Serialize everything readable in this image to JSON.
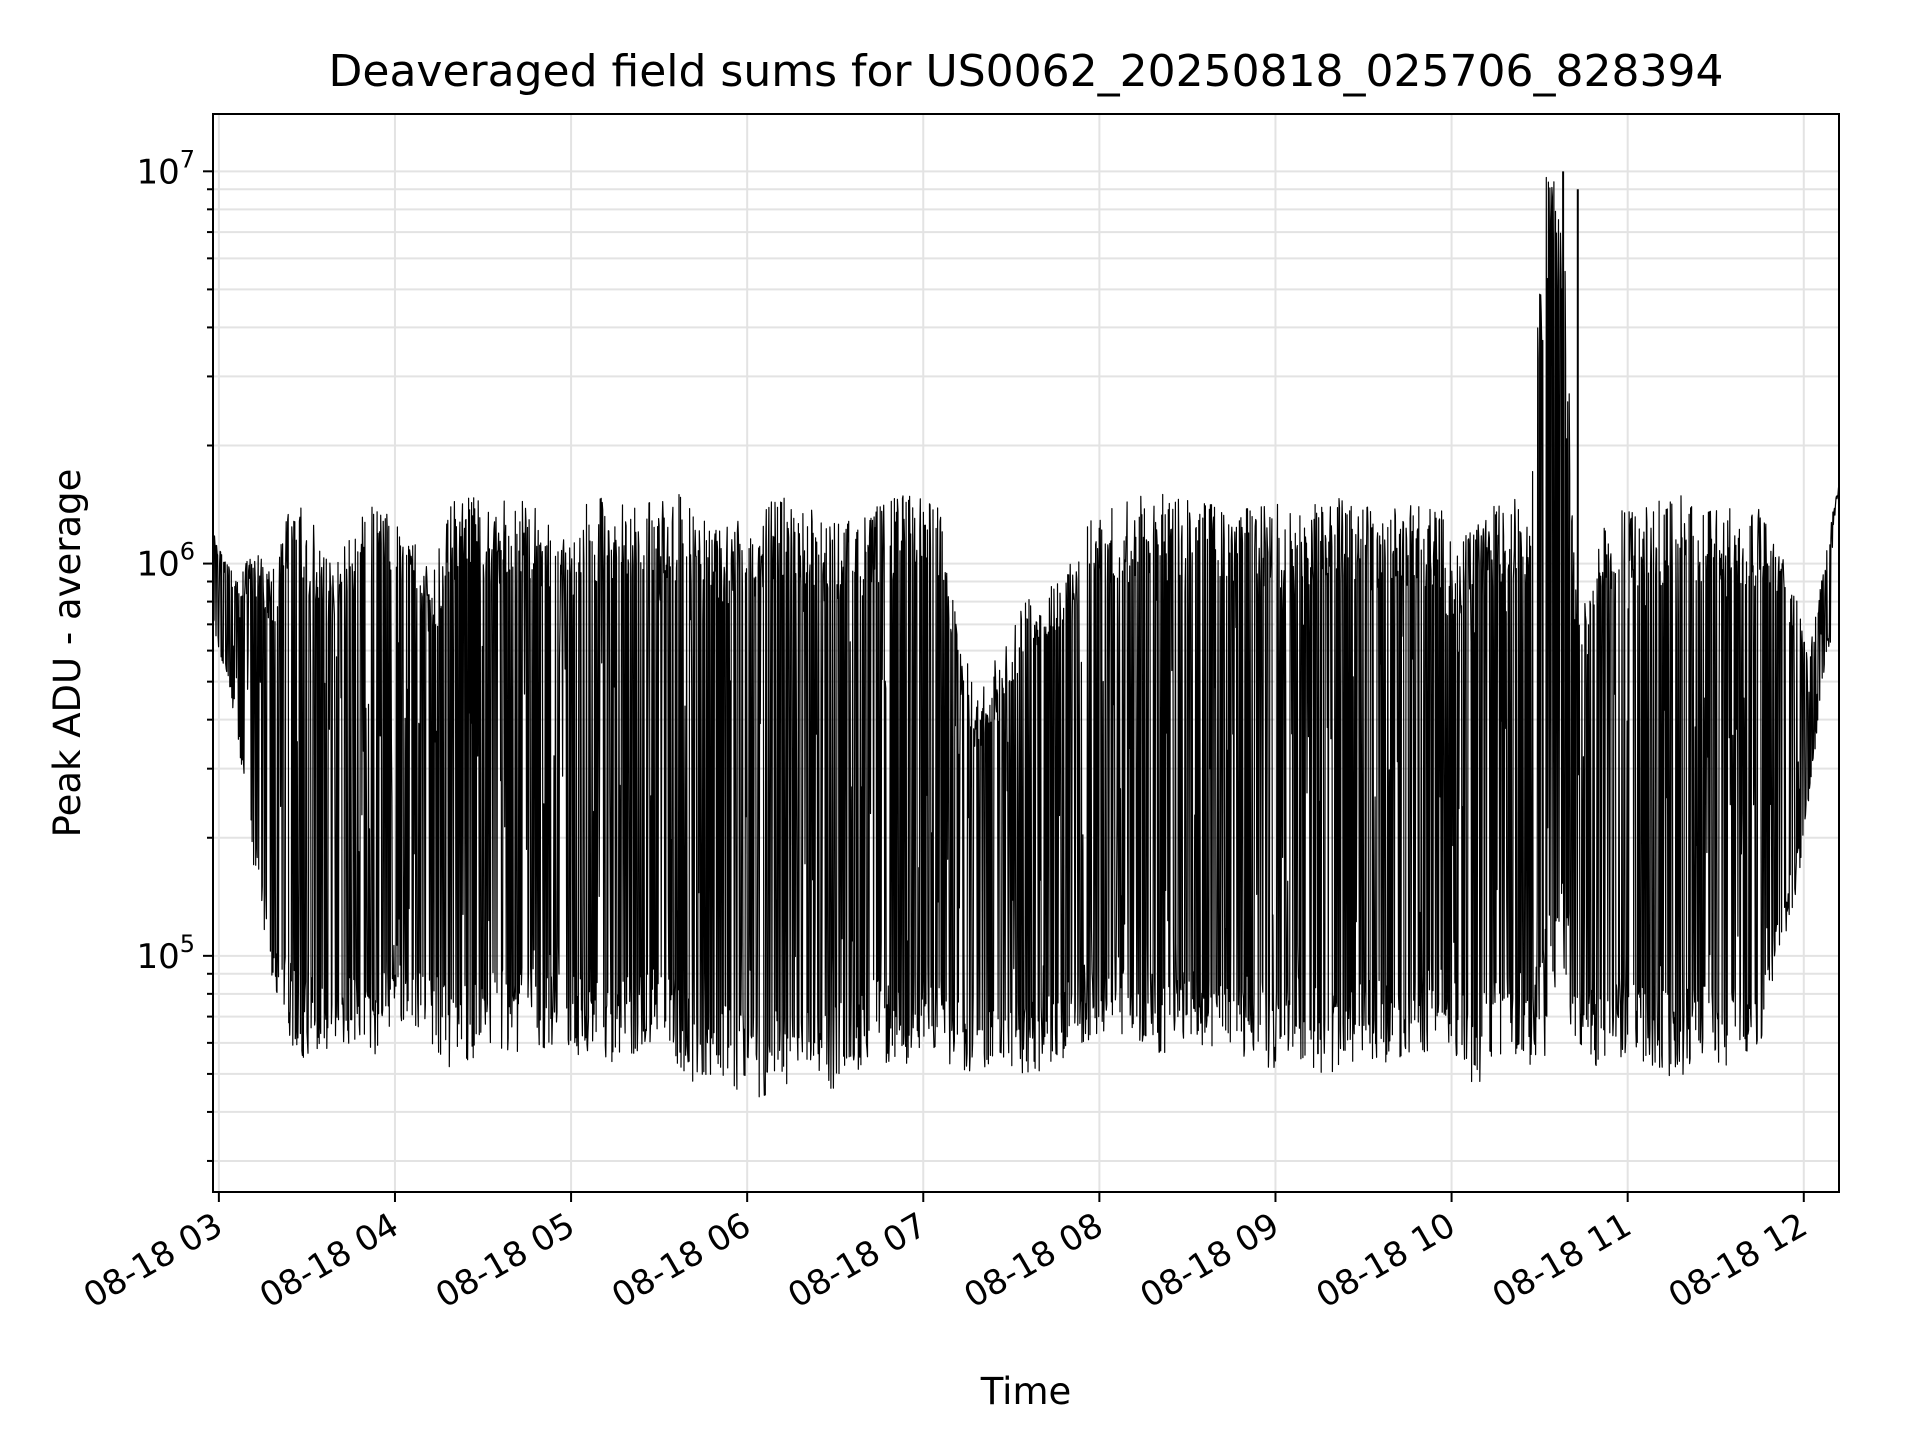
{
  "chart_data": {
    "type": "line",
    "title": "Deaveraged field sums for US0062_20250818_025706_828394",
    "xlabel": "Time",
    "ylabel": "Peak ADU - average",
    "x_range": [
      "2025-08-18 02:58",
      "2025-08-18 12:12"
    ],
    "y_range": [
      25000,
      14000000
    ],
    "y_scale": "log",
    "grid": true,
    "line_color": "#000000",
    "x_ticks": [
      "08-18 03",
      "08-18 04",
      "08-18 05",
      "08-18 06",
      "08-18 07",
      "08-18 08",
      "08-18 09",
      "08-18 10",
      "08-18 11",
      "08-18 12"
    ],
    "y_ticks": [
      {
        "value": 100000,
        "base": "10",
        "exp": "5"
      },
      {
        "value": 1000000,
        "base": "10",
        "exp": "6"
      },
      {
        "value": 10000000,
        "base": "10",
        "exp": "7"
      }
    ],
    "series": [
      {
        "x": [
          "02:58",
          "03:06",
          "03:12",
          "03:20",
          "03:24",
          "03:28",
          "03:32",
          "03:40",
          "03:48",
          "03:54",
          "04:00",
          "04:06",
          "04:12",
          "04:20",
          "04:28",
          "04:34",
          "04:40",
          "04:46",
          "04:50",
          "04:56",
          "05:04",
          "05:12",
          "05:20",
          "05:28",
          "05:36",
          "05:42",
          "05:48",
          "05:56",
          "06:04",
          "06:12",
          "06:20",
          "06:28",
          "06:36",
          "06:44",
          "06:52",
          "07:00",
          "07:06",
          "07:12",
          "07:18",
          "07:26",
          "07:34",
          "07:40",
          "07:48",
          "07:56",
          "08:04",
          "08:12",
          "08:20",
          "08:28",
          "08:36",
          "08:44",
          "08:52",
          "09:00",
          "09:08",
          "09:16",
          "09:24",
          "09:32",
          "09:40",
          "09:48",
          "09:56",
          "10:02",
          "10:08",
          "10:14",
          "10:20",
          "10:26",
          "10:32",
          "10:38",
          "10:42",
          "10:46",
          "10:52",
          "10:58",
          "11:04",
          "11:10",
          "11:18",
          "11:26",
          "11:34",
          "11:42",
          "11:46",
          "11:50",
          "11:56",
          "12:02",
          "12:08",
          "12:12"
        ],
        "y_min": [
          700000,
          380000,
          150000,
          70000,
          60000,
          55000,
          55000,
          60000,
          55000,
          55000,
          70000,
          65000,
          60000,
          50000,
          55000,
          60000,
          55000,
          60000,
          55000,
          60000,
          55000,
          50000,
          55000,
          60000,
          50000,
          45000,
          48000,
          45000,
          42000,
          45000,
          50000,
          45000,
          50000,
          55000,
          50000,
          60000,
          55000,
          48000,
          50000,
          55000,
          50000,
          50000,
          55000,
          60000,
          65000,
          60000,
          55000,
          60000,
          58000,
          55000,
          55000,
          50000,
          55000,
          50000,
          48000,
          55000,
          50000,
          55000,
          60000,
          55000,
          45000,
          55000,
          55000,
          50000,
          55000,
          80000,
          60000,
          55000,
          50000,
          55000,
          55000,
          50000,
          48000,
          55000,
          52000,
          55000,
          60000,
          80000,
          120000,
          250000,
          600000,
          700000
        ],
        "y_max": [
          1200000,
          900000,
          1100000,
          1000000,
          1500000,
          1400000,
          1300000,
          1000000,
          1400000,
          1400000,
          1300000,
          1400000,
          900000,
          1500000,
          1500000,
          1400000,
          1500000,
          1400000,
          1400000,
          1100000,
          1400000,
          1500000,
          1400000,
          1500000,
          1500000,
          1500000,
          1200000,
          1300000,
          1400000,
          1500000,
          1400000,
          1300000,
          1300000,
          1400000,
          1500000,
          1500000,
          1400000,
          700000,
          450000,
          600000,
          800000,
          900000,
          1000000,
          1300000,
          1400000,
          1500000,
          1500000,
          1500000,
          1450000,
          1400000,
          1400000,
          1450000,
          1400000,
          1500000,
          1450000,
          1400000,
          1450000,
          1400000,
          1400000,
          1100000,
          1300000,
          1400000,
          1500000,
          1400000,
          10000000,
          9000000,
          1000000,
          800000,
          1300000,
          1500000,
          1400000,
          1450000,
          1500000,
          1400000,
          1450000,
          1400000,
          1400000,
          1200000,
          900000,
          600000,
          1100000,
          1700000
        ]
      }
    ],
    "spikes": [
      {
        "x": "10:38",
        "y_top": 10000000,
        "y_bottom": 500000
      },
      {
        "x": "10:43",
        "y_top": 9000000,
        "y_bottom": 600000
      }
    ]
  }
}
